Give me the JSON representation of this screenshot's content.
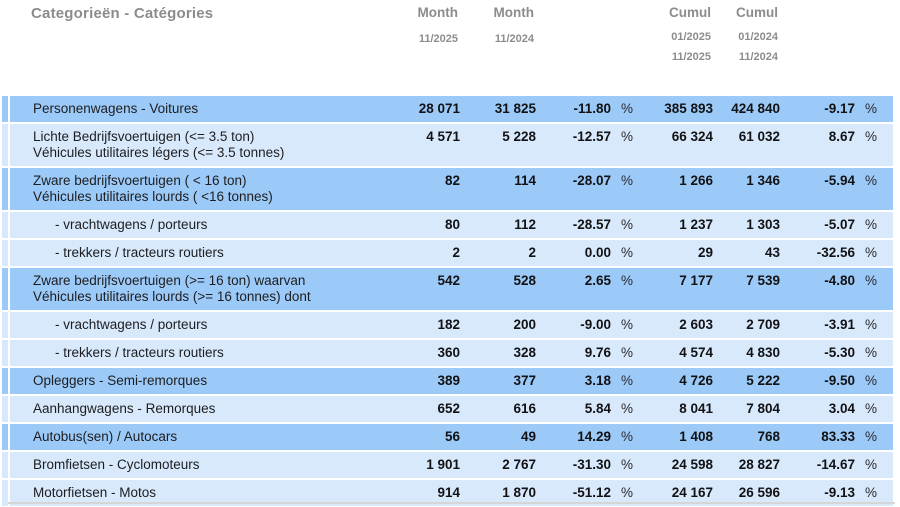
{
  "header": {
    "category": "Categorieën - Catégories",
    "columns": [
      {
        "title": "Month",
        "dates": [
          "11/2025"
        ]
      },
      {
        "title": "Month",
        "dates": [
          "11/2024"
        ]
      },
      {
        "title": "Cumul",
        "dates": [
          "01/2025",
          "11/2025"
        ]
      },
      {
        "title": "Cumul",
        "dates": [
          "01/2024",
          "11/2024"
        ]
      }
    ]
  },
  "percent_sign": "%",
  "rows": [
    {
      "lines": [
        "Personenwagens - Voitures"
      ],
      "indent": false,
      "shade": "dark",
      "m1": "28 071",
      "m2": "31 825",
      "pct1": "-11.80",
      "cum1": "385 893",
      "cum2": "424 840",
      "pct2": "-9.17"
    },
    {
      "lines": [
        "Lichte Bedrijfsvoertuigen (<= 3.5 ton)",
        "Véhicules utilitaires légers (<= 3.5 tonnes)"
      ],
      "indent": false,
      "shade": "light",
      "m1": "4 571",
      "m2": "5 228",
      "pct1": "-12.57",
      "cum1": "66 324",
      "cum2": "61 032",
      "pct2": "8.67"
    },
    {
      "lines": [
        "Zware bedrijfsvoertuigen ( < 16 ton)",
        "Véhicules utilitaires lourds ( <16 tonnes)"
      ],
      "indent": false,
      "shade": "dark",
      "m1": "82",
      "m2": "114",
      "pct1": "-28.07",
      "cum1": "1 266",
      "cum2": "1 346",
      "pct2": "-5.94"
    },
    {
      "lines": [
        "- vrachtwagens / porteurs"
      ],
      "indent": true,
      "shade": "light",
      "m1": "80",
      "m2": "112",
      "pct1": "-28.57",
      "cum1": "1 237",
      "cum2": "1 303",
      "pct2": "-5.07"
    },
    {
      "lines": [
        "- trekkers / tracteurs routiers"
      ],
      "indent": true,
      "shade": "light",
      "m1": "2",
      "m2": "2",
      "pct1": "0.00",
      "cum1": "29",
      "cum2": "43",
      "pct2": "-32.56"
    },
    {
      "lines": [
        "Zware bedrijfsvoertuigen (>= 16 ton) waarvan",
        "Véhicules utilitaires lourds (>= 16 tonnes) dont"
      ],
      "indent": false,
      "shade": "dark",
      "m1": "542",
      "m2": "528",
      "pct1": "2.65",
      "cum1": "7 177",
      "cum2": "7 539",
      "pct2": "-4.80"
    },
    {
      "lines": [
        "- vrachtwagens / porteurs"
      ],
      "indent": true,
      "shade": "light",
      "m1": "182",
      "m2": "200",
      "pct1": "-9.00",
      "cum1": "2 603",
      "cum2": "2 709",
      "pct2": "-3.91"
    },
    {
      "lines": [
        "- trekkers / tracteurs routiers"
      ],
      "indent": true,
      "shade": "light",
      "m1": "360",
      "m2": "328",
      "pct1": "9.76",
      "cum1": "4 574",
      "cum2": "4 830",
      "pct2": "-5.30"
    },
    {
      "lines": [
        "Opleggers - Semi-remorques"
      ],
      "indent": false,
      "shade": "dark",
      "m1": "389",
      "m2": "377",
      "pct1": "3.18",
      "cum1": "4 726",
      "cum2": "5 222",
      "pct2": "-9.50"
    },
    {
      "lines": [
        "Aanhangwagens - Remorques"
      ],
      "indent": false,
      "shade": "light",
      "m1": "652",
      "m2": "616",
      "pct1": "5.84",
      "cum1": "8 041",
      "cum2": "7 804",
      "pct2": "3.04"
    },
    {
      "lines": [
        "Autobus(sen) / Autocars"
      ],
      "indent": false,
      "shade": "dark",
      "m1": "56",
      "m2": "49",
      "pct1": "14.29",
      "cum1": "1 408",
      "cum2": "768",
      "pct2": "83.33"
    },
    {
      "lines": [
        "Bromfietsen - Cyclomoteurs"
      ],
      "indent": false,
      "shade": "light",
      "m1": "1 901",
      "m2": "2 767",
      "pct1": "-31.30",
      "cum1": "24 598",
      "cum2": "28 827",
      "pct2": "-14.67"
    },
    {
      "lines": [
        "Motorfietsen - Motos"
      ],
      "indent": false,
      "shade": "light",
      "m1": "914",
      "m2": "1 870",
      "pct1": "-51.12",
      "cum1": "24 167",
      "cum2": "26 596",
      "pct2": "-9.13"
    }
  ],
  "colors": {
    "row_dark": "#9ccaf8",
    "row_light": "#d8e9fc",
    "header_text": "#8c8c8c",
    "bottom_rule": "#d6d6d6"
  }
}
